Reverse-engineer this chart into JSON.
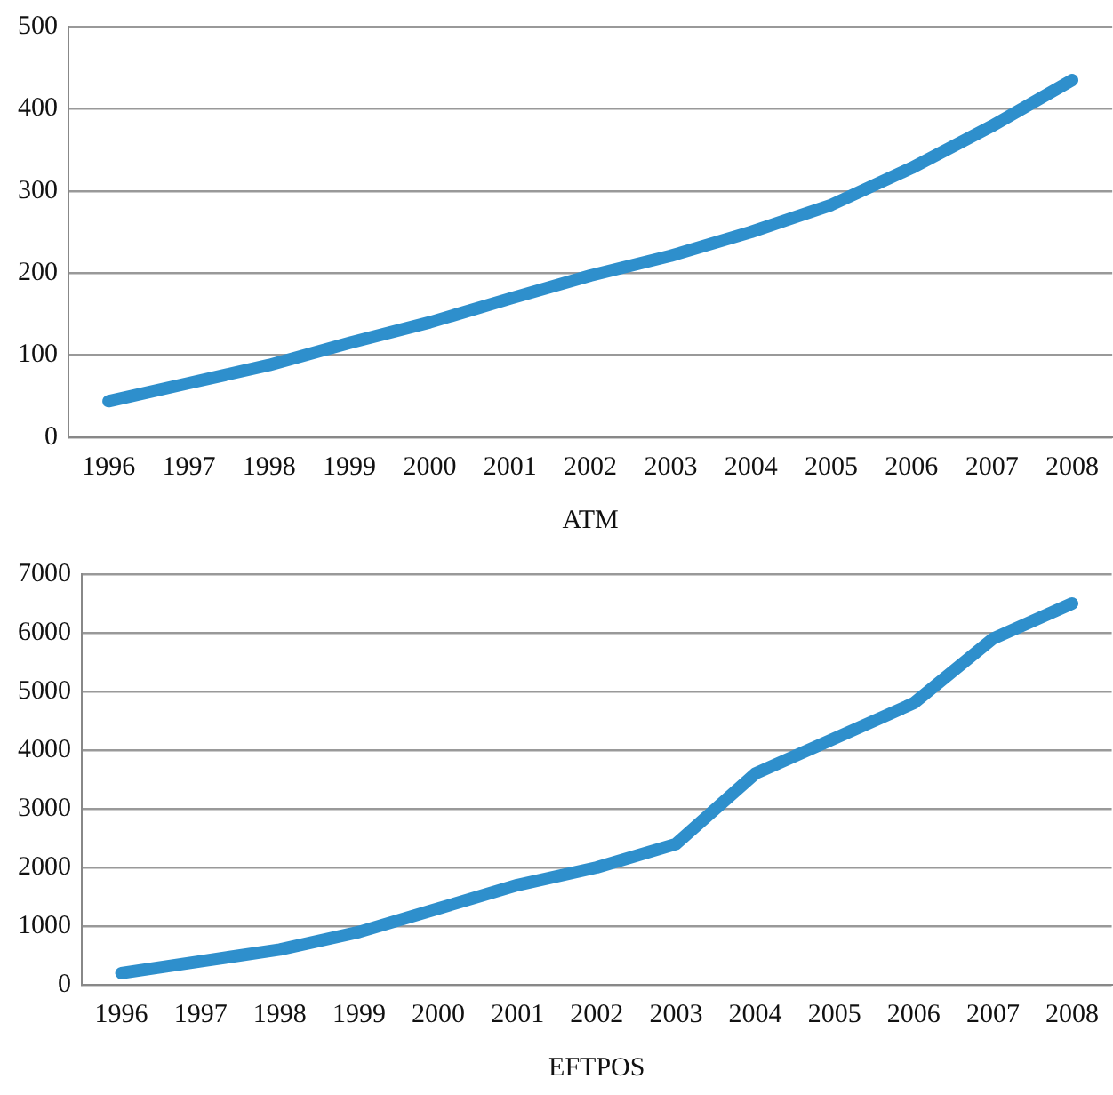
{
  "chart_data": [
    {
      "type": "line",
      "xlabel": "ATM",
      "categories": [
        "1996",
        "1997",
        "1998",
        "1999",
        "2000",
        "2001",
        "2002",
        "2003",
        "2004",
        "2005",
        "2006",
        "2007",
        "2008"
      ],
      "series": [
        {
          "color": "#2e8fcc",
          "values": [
            44,
            66,
            88,
            115,
            140,
            169,
            197,
            221,
            250,
            283,
            328,
            379,
            435
          ]
        }
      ],
      "ylim": [
        0,
        500
      ],
      "yticks": [
        0,
        100,
        200,
        300,
        400,
        500
      ],
      "grid": "y",
      "legend": false,
      "marker": "none",
      "line_style": "solid"
    },
    {
      "type": "line",
      "xlabel": "EFTPOS",
      "categories": [
        "1996",
        "1997",
        "1998",
        "1999",
        "2000",
        "2001",
        "2002",
        "2003",
        "2004",
        "2005",
        "2006",
        "2007",
        "2008"
      ],
      "series": [
        {
          "color": "#2e8fcc",
          "values": [
            200,
            400,
            600,
            900,
            1300,
            1700,
            2000,
            2400,
            3600,
            4200,
            4800,
            5900,
            6500
          ]
        }
      ],
      "ylim": [
        0,
        7000
      ],
      "yticks": [
        0,
        1000,
        2000,
        3000,
        4000,
        5000,
        6000,
        7000
      ],
      "grid": "y",
      "legend": false,
      "marker": "none",
      "line_style": "solid"
    }
  ]
}
